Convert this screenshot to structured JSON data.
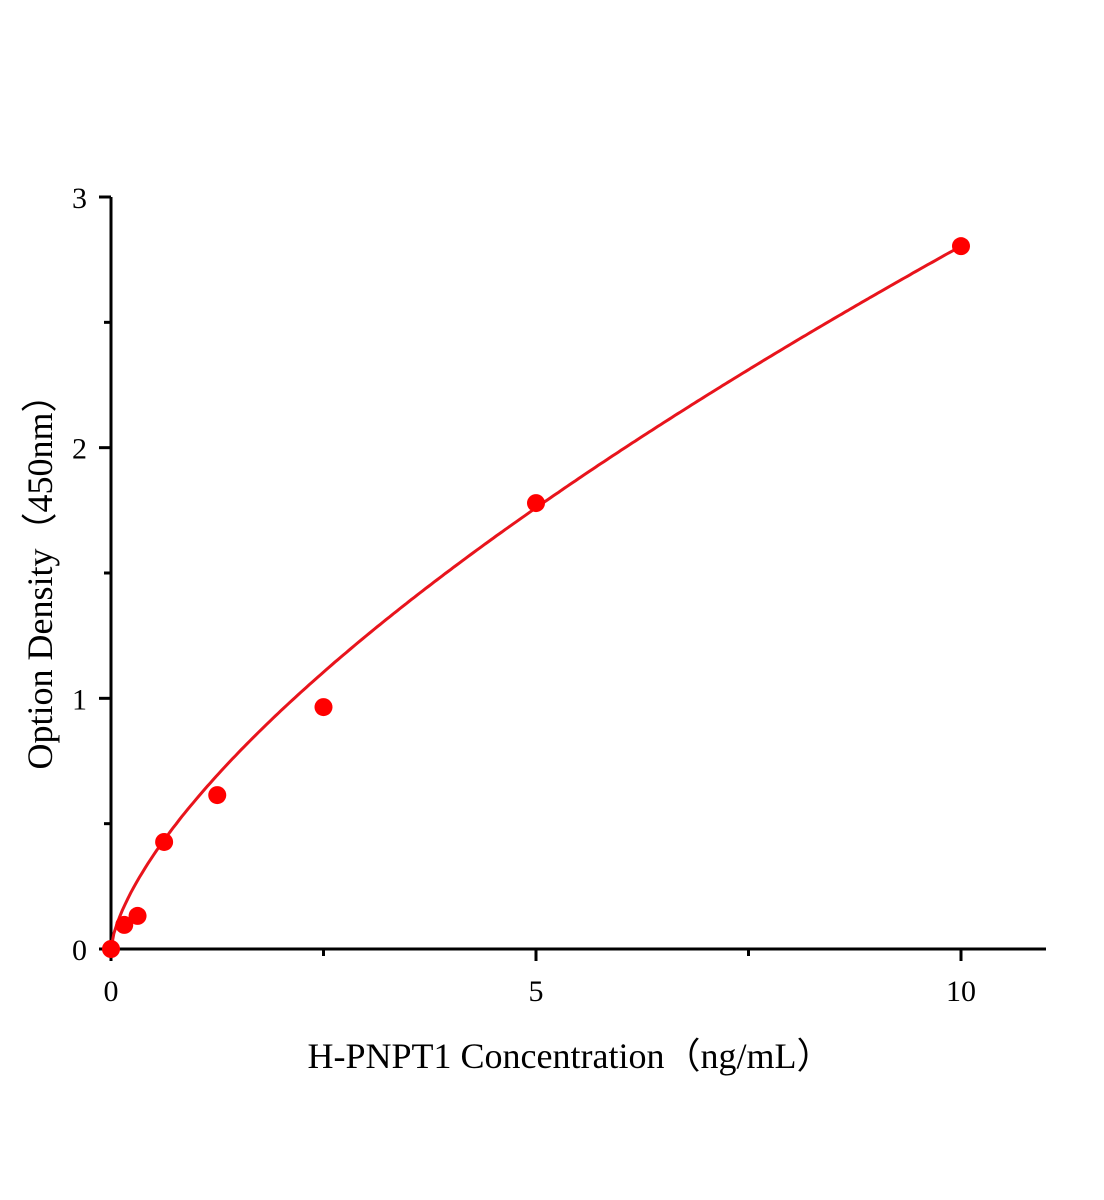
{
  "chart_data": {
    "type": "scatter",
    "xlabel": "H-PNPT1 Concentration（ng/mL）",
    "ylabel": "Option Density（450nm）",
    "xlim": [
      0,
      11
    ],
    "ylim": [
      0,
      3
    ],
    "x_ticks": [
      0,
      5,
      10
    ],
    "x_tick_labels": [
      "0",
      "5",
      "10"
    ],
    "x_minor_ticks": [
      2.5,
      7.5
    ],
    "y_ticks": [
      0,
      1,
      2,
      3
    ],
    "y_tick_labels": [
      "0",
      "1",
      "2",
      "3"
    ],
    "y_minor_ticks": [
      0.5,
      1.5,
      2.5
    ],
    "grid": false,
    "series": [
      {
        "x": [
          0,
          0.156,
          0.3125,
          0.625,
          1.25,
          2.5,
          5,
          10
        ],
        "y": [
          0.0,
          0.096,
          0.132,
          0.427,
          0.614,
          0.965,
          1.779,
          2.804
        ],
        "color": "#ff0000",
        "marker": "circle",
        "fit_line": true,
        "fit_color": "#e8141c"
      }
    ]
  }
}
